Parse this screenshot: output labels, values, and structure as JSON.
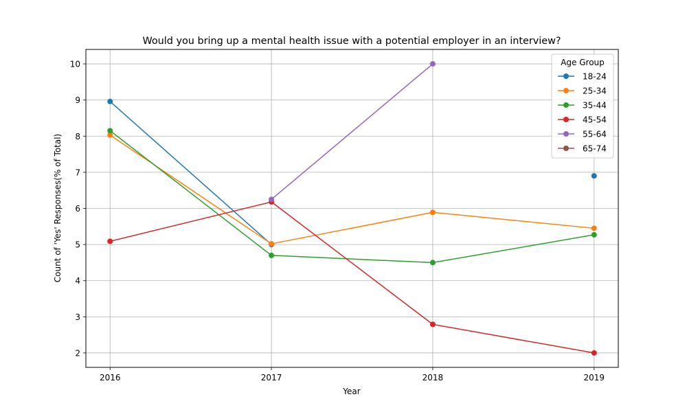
{
  "chart_data": {
    "type": "line",
    "title": "Would you bring up a mental health issue with a potential employer in an interview?",
    "xlabel": "Year",
    "ylabel": "Count of 'Yes' Responses(% of Total)",
    "x": [
      2016,
      2017,
      2018,
      2019
    ],
    "x_tick_labels": [
      "2016",
      "2017",
      "2018",
      "2019"
    ],
    "y_ticks": [
      2,
      3,
      4,
      5,
      6,
      7,
      8,
      9,
      10
    ],
    "ylim": [
      1.6,
      10.4
    ],
    "grid": true,
    "legend": {
      "title": "Age Group",
      "placement": "top-right"
    },
    "series": [
      {
        "name": "18-24",
        "color": "#1f77b4",
        "values": [
          8.96,
          5.0,
          null,
          6.9
        ]
      },
      {
        "name": "25-34",
        "color": "#ff7f0e",
        "values": [
          8.03,
          5.02,
          5.89,
          5.45
        ]
      },
      {
        "name": "35-44",
        "color": "#2ca02c",
        "values": [
          8.15,
          4.7,
          4.5,
          5.27
        ]
      },
      {
        "name": "45-54",
        "color": "#d62728",
        "values": [
          5.09,
          6.18,
          2.79,
          2.0
        ]
      },
      {
        "name": "55-64",
        "color": "#9467bd",
        "values": [
          null,
          6.25,
          10.0,
          null
        ]
      },
      {
        "name": "65-74",
        "color": "#8c564b",
        "values": [
          null,
          null,
          null,
          null
        ]
      }
    ]
  }
}
